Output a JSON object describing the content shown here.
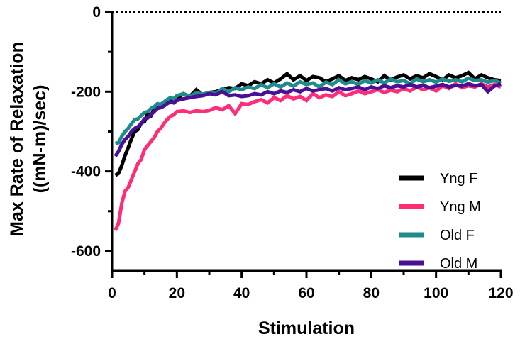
{
  "chart_data": {
    "type": "line",
    "xlabel": "Stimulation",
    "ylabel_lines": [
      "Max Rate of Relaxation",
      "((mN-m)/sec)"
    ],
    "xlim": [
      0,
      120
    ],
    "ylim": [
      -650,
      0
    ],
    "x_ticks": [
      0,
      20,
      40,
      60,
      80,
      100,
      120
    ],
    "y_ticks": [
      0,
      -200,
      -400,
      -600
    ],
    "legend_position": "bottom-right",
    "grid": false,
    "series": [
      {
        "name": "Yng F",
        "color": "#000000",
        "x": [
          1,
          2,
          3,
          4,
          5,
          6,
          7,
          8,
          9,
          10,
          11,
          12,
          13,
          14,
          15,
          16,
          17,
          18,
          19,
          20,
          22,
          24,
          26,
          28,
          30,
          32,
          34,
          36,
          38,
          40,
          42,
          44,
          46,
          48,
          50,
          52,
          54,
          56,
          58,
          60,
          62,
          64,
          66,
          68,
          70,
          72,
          74,
          76,
          78,
          80,
          82,
          84,
          86,
          88,
          90,
          92,
          94,
          96,
          98,
          100,
          102,
          104,
          106,
          108,
          110,
          112,
          114,
          116,
          118,
          120
        ],
        "values": [
          -410,
          -405,
          -385,
          -360,
          -340,
          -318,
          -300,
          -295,
          -278,
          -275,
          -255,
          -260,
          -243,
          -238,
          -235,
          -230,
          -228,
          -220,
          -222,
          -218,
          -205,
          -212,
          -195,
          -208,
          -202,
          -200,
          -195,
          -190,
          -192,
          -180,
          -185,
          -175,
          -180,
          -170,
          -178,
          -168,
          -155,
          -170,
          -160,
          -172,
          -162,
          -165,
          -175,
          -168,
          -160,
          -172,
          -165,
          -170,
          -162,
          -168,
          -175,
          -160,
          -170,
          -163,
          -158,
          -168,
          -160,
          -165,
          -155,
          -162,
          -170,
          -158,
          -165,
          -160,
          -152,
          -168,
          -158,
          -165,
          -170,
          -172
        ]
      },
      {
        "name": "Yng M",
        "color": "#ff2d78",
        "x": [
          1,
          2,
          3,
          4,
          5,
          6,
          7,
          8,
          9,
          10,
          11,
          12,
          13,
          14,
          15,
          16,
          17,
          18,
          19,
          20,
          22,
          24,
          26,
          28,
          30,
          32,
          34,
          36,
          38,
          40,
          42,
          44,
          46,
          48,
          50,
          52,
          54,
          56,
          58,
          60,
          62,
          64,
          66,
          68,
          70,
          72,
          74,
          76,
          78,
          80,
          82,
          84,
          86,
          88,
          90,
          92,
          94,
          96,
          98,
          100,
          102,
          104,
          106,
          108,
          110,
          112,
          114,
          116,
          118,
          120
        ],
        "values": [
          -548,
          -530,
          -480,
          -450,
          -440,
          -420,
          -400,
          -380,
          -370,
          -345,
          -335,
          -325,
          -315,
          -300,
          -292,
          -280,
          -270,
          -262,
          -258,
          -250,
          -248,
          -252,
          -248,
          -250,
          -247,
          -240,
          -245,
          -235,
          -255,
          -230,
          -232,
          -225,
          -220,
          -228,
          -215,
          -222,
          -210,
          -218,
          -212,
          -222,
          -205,
          -215,
          -208,
          -212,
          -200,
          -210,
          -205,
          -198,
          -205,
          -200,
          -195,
          -202,
          -196,
          -200,
          -192,
          -198,
          -188,
          -195,
          -190,
          -198,
          -185,
          -192,
          -180,
          -190,
          -185,
          -188,
          -180,
          -188,
          -182,
          -188
        ]
      },
      {
        "name": "Old F",
        "color": "#1e8c8c",
        "x": [
          1,
          2,
          3,
          4,
          5,
          6,
          7,
          8,
          9,
          10,
          11,
          12,
          13,
          14,
          15,
          16,
          17,
          18,
          19,
          20,
          22,
          24,
          26,
          28,
          30,
          32,
          34,
          36,
          38,
          40,
          42,
          44,
          46,
          48,
          50,
          52,
          54,
          56,
          58,
          60,
          62,
          64,
          66,
          68,
          70,
          72,
          74,
          76,
          78,
          80,
          82,
          84,
          86,
          88,
          90,
          92,
          94,
          96,
          98,
          100,
          102,
          104,
          106,
          108,
          110,
          112,
          114,
          116,
          118,
          120
        ],
        "values": [
          -330,
          -328,
          -312,
          -300,
          -292,
          -280,
          -270,
          -268,
          -260,
          -252,
          -250,
          -242,
          -238,
          -230,
          -232,
          -226,
          -220,
          -215,
          -218,
          -210,
          -205,
          -212,
          -203,
          -206,
          -202,
          -205,
          -192,
          -200,
          -190,
          -195,
          -188,
          -192,
          -182,
          -190,
          -180,
          -188,
          -178,
          -186,
          -175,
          -182,
          -178,
          -188,
          -176,
          -182,
          -170,
          -180,
          -175,
          -182,
          -172,
          -178,
          -170,
          -178,
          -168,
          -175,
          -172,
          -180,
          -168,
          -175,
          -170,
          -176,
          -168,
          -174,
          -170,
          -175,
          -166,
          -172,
          -170,
          -176,
          -172,
          -178
        ]
      },
      {
        "name": "Old M",
        "color": "#4b0f96",
        "x": [
          1,
          2,
          3,
          4,
          5,
          6,
          7,
          8,
          9,
          10,
          11,
          12,
          13,
          14,
          15,
          16,
          17,
          18,
          19,
          20,
          22,
          24,
          26,
          28,
          30,
          32,
          34,
          36,
          38,
          40,
          42,
          44,
          46,
          48,
          50,
          52,
          54,
          56,
          58,
          60,
          62,
          64,
          66,
          68,
          70,
          72,
          74,
          76,
          78,
          80,
          82,
          84,
          86,
          88,
          90,
          92,
          94,
          96,
          98,
          100,
          102,
          104,
          106,
          108,
          110,
          112,
          114,
          116,
          118,
          120
        ],
        "values": [
          -362,
          -350,
          -332,
          -320,
          -312,
          -300,
          -292,
          -288,
          -280,
          -268,
          -266,
          -258,
          -250,
          -242,
          -240,
          -236,
          -230,
          -226,
          -228,
          -222,
          -218,
          -215,
          -212,
          -210,
          -205,
          -208,
          -200,
          -210,
          -208,
          -212,
          -210,
          -205,
          -208,
          -200,
          -205,
          -198,
          -202,
          -195,
          -200,
          -192,
          -198,
          -195,
          -192,
          -198,
          -190,
          -195,
          -192,
          -188,
          -195,
          -188,
          -192,
          -185,
          -190,
          -185,
          -188,
          -182,
          -188,
          -184,
          -190,
          -186,
          -182,
          -188,
          -184,
          -186,
          -180,
          -185,
          -182,
          -200,
          -186,
          -180
        ]
      }
    ]
  }
}
